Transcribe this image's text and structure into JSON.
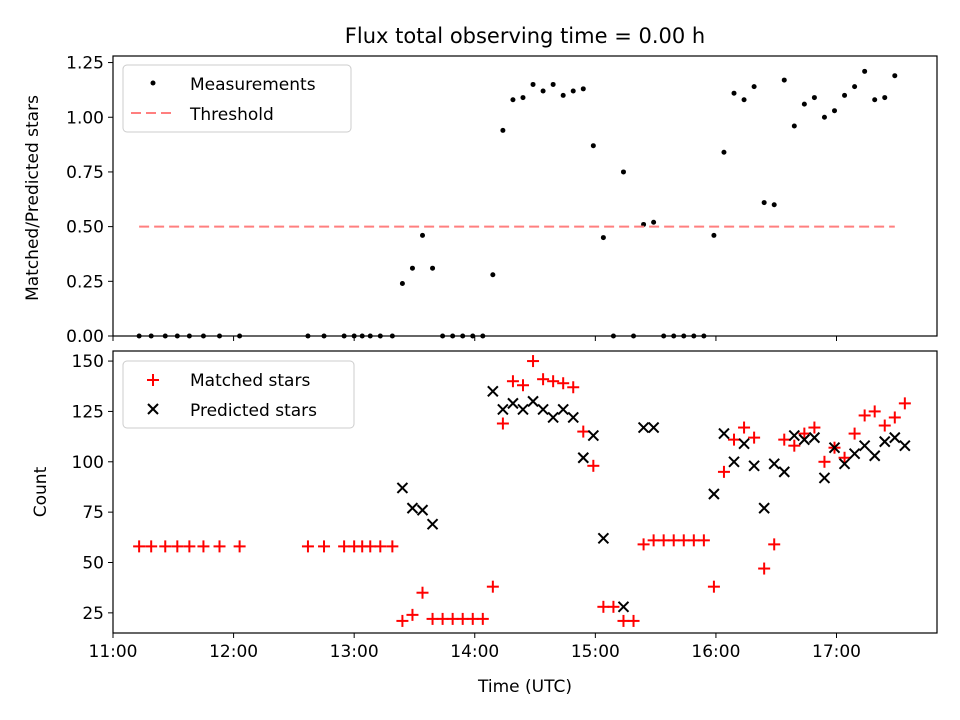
{
  "figure_title": "Flux total observing time = 0.00 h",
  "colors": {
    "measurement": "#000000",
    "threshold": "#ff7f7f",
    "matched": "#ff0000",
    "predicted": "#000000"
  },
  "chart_data": [
    {
      "type": "scatter",
      "title": "Flux total observing time = 0.00 h",
      "xlabel": "",
      "ylabel": "Matched/Predicted stars",
      "xlim": [
        "11:00",
        "17:50"
      ],
      "ylim": [
        0,
        1.28
      ],
      "yticks": [
        0,
        0.25,
        0.5,
        0.75,
        1.0,
        1.25
      ],
      "ytick_labels": [
        "0.00",
        "0.25",
        "0.50",
        "0.75",
        "1.00",
        "1.25"
      ],
      "xtick_labels_hidden": true,
      "grid": false,
      "legend": {
        "position": "top-left",
        "entries": [
          "Measurements",
          "Threshold"
        ]
      },
      "series": [
        {
          "name": "Measurements",
          "marker": "dot",
          "points": [
            [
              "11:13",
              0
            ],
            [
              "11:19",
              0
            ],
            [
              "11:26",
              0
            ],
            [
              "11:32",
              0
            ],
            [
              "11:38",
              0
            ],
            [
              "11:45",
              0
            ],
            [
              "11:53",
              0
            ],
            [
              "12:03",
              0
            ],
            [
              "12:37",
              0
            ],
            [
              "12:45",
              0
            ],
            [
              "12:55",
              0
            ],
            [
              "13:00",
              0
            ],
            [
              "13:04",
              0
            ],
            [
              "13:08",
              0
            ],
            [
              "13:13",
              0
            ],
            [
              "13:19",
              0
            ],
            [
              "13:24",
              0.24
            ],
            [
              "13:29",
              0.31
            ],
            [
              "13:34",
              0.46
            ],
            [
              "13:39",
              0.31
            ],
            [
              "13:44",
              0
            ],
            [
              "13:49",
              0
            ],
            [
              "13:54",
              0
            ],
            [
              "13:59",
              0
            ],
            [
              "14:04",
              0
            ],
            [
              "14:09",
              0.28
            ],
            [
              "14:14",
              0.94
            ],
            [
              "14:19",
              1.08
            ],
            [
              "14:24",
              1.09
            ],
            [
              "14:29",
              1.15
            ],
            [
              "14:34",
              1.12
            ],
            [
              "14:39",
              1.15
            ],
            [
              "14:44",
              1.1
            ],
            [
              "14:49",
              1.12
            ],
            [
              "14:54",
              1.13
            ],
            [
              "14:59",
              0.87
            ],
            [
              "15:04",
              0.45
            ],
            [
              "15:09",
              0
            ],
            [
              "15:14",
              0.75
            ],
            [
              "15:19",
              0
            ],
            [
              "15:24",
              0.51
            ],
            [
              "15:29",
              0.52
            ],
            [
              "15:34",
              0
            ],
            [
              "15:39",
              0
            ],
            [
              "15:44",
              0
            ],
            [
              "15:49",
              0
            ],
            [
              "15:54",
              0
            ],
            [
              "15:59",
              0.46
            ],
            [
              "16:04",
              0.84
            ],
            [
              "16:09",
              1.11
            ],
            [
              "16:14",
              1.08
            ],
            [
              "16:19",
              1.14
            ],
            [
              "16:24",
              0.61
            ],
            [
              "16:29",
              0.6
            ],
            [
              "16:34",
              1.17
            ],
            [
              "16:39",
              0.96
            ],
            [
              "16:44",
              1.06
            ],
            [
              "16:49",
              1.09
            ],
            [
              "16:54",
              1.0
            ],
            [
              "16:59",
              1.03
            ],
            [
              "17:04",
              1.1
            ],
            [
              "17:09",
              1.14
            ],
            [
              "17:14",
              1.21
            ],
            [
              "17:19",
              1.08
            ],
            [
              "17:24",
              1.09
            ],
            [
              "17:29",
              1.19
            ]
          ]
        },
        {
          "name": "Threshold",
          "style": "dashed",
          "points": [
            [
              "11:13",
              0.5
            ],
            [
              "17:29",
              0.5
            ]
          ]
        }
      ]
    },
    {
      "type": "scatter",
      "title": "",
      "xlabel": "Time (UTC)",
      "ylabel": "Count",
      "xlim": [
        "11:00",
        "17:50"
      ],
      "ylim": [
        15,
        155
      ],
      "yticks": [
        25,
        50,
        75,
        100,
        125,
        150
      ],
      "ytick_labels": [
        "25",
        "50",
        "75",
        "100",
        "125",
        "150"
      ],
      "xticks": [
        "11:00",
        "12:00",
        "13:00",
        "14:00",
        "15:00",
        "16:00",
        "17:00"
      ],
      "grid": false,
      "legend": {
        "position": "top-left",
        "entries": [
          "Matched stars",
          "Predicted stars"
        ]
      },
      "series": [
        {
          "name": "Matched stars",
          "marker": "plus",
          "points": [
            [
              "11:13",
              58
            ],
            [
              "11:19",
              58
            ],
            [
              "11:26",
              58
            ],
            [
              "11:32",
              58
            ],
            [
              "11:38",
              58
            ],
            [
              "11:45",
              58
            ],
            [
              "11:53",
              58
            ],
            [
              "12:03",
              58
            ],
            [
              "12:37",
              58
            ],
            [
              "12:45",
              58
            ],
            [
              "12:55",
              58
            ],
            [
              "13:00",
              58
            ],
            [
              "13:04",
              58
            ],
            [
              "13:08",
              58
            ],
            [
              "13:13",
              58
            ],
            [
              "13:19",
              58
            ],
            [
              "13:24",
              21
            ],
            [
              "13:29",
              24
            ],
            [
              "13:34",
              35
            ],
            [
              "13:39",
              22
            ],
            [
              "13:44",
              22
            ],
            [
              "13:49",
              22
            ],
            [
              "13:54",
              22
            ],
            [
              "13:59",
              22
            ],
            [
              "14:04",
              22
            ],
            [
              "14:09",
              38
            ],
            [
              "14:14",
              119
            ],
            [
              "14:19",
              140
            ],
            [
              "14:24",
              138
            ],
            [
              "14:29",
              150
            ],
            [
              "14:34",
              141
            ],
            [
              "14:39",
              140
            ],
            [
              "14:44",
              139
            ],
            [
              "14:49",
              137
            ],
            [
              "14:54",
              115
            ],
            [
              "14:59",
              98
            ],
            [
              "15:04",
              28
            ],
            [
              "15:09",
              28
            ],
            [
              "15:14",
              21
            ],
            [
              "15:19",
              21
            ],
            [
              "15:24",
              59
            ],
            [
              "15:29",
              61
            ],
            [
              "15:34",
              61
            ],
            [
              "15:39",
              61
            ],
            [
              "15:44",
              61
            ],
            [
              "15:49",
              61
            ],
            [
              "15:54",
              61
            ],
            [
              "15:59",
              38
            ],
            [
              "16:04",
              95
            ],
            [
              "16:09",
              111
            ],
            [
              "16:14",
              117
            ],
            [
              "16:19",
              112
            ],
            [
              "16:24",
              47
            ],
            [
              "16:29",
              59
            ],
            [
              "16:34",
              111
            ],
            [
              "16:39",
              108
            ],
            [
              "16:44",
              114
            ],
            [
              "16:49",
              117
            ],
            [
              "16:54",
              100
            ],
            [
              "16:59",
              107
            ],
            [
              "17:04",
              102
            ],
            [
              "17:09",
              114
            ],
            [
              "17:14",
              123
            ],
            [
              "17:19",
              125
            ],
            [
              "17:24",
              118
            ],
            [
              "17:29",
              122
            ],
            [
              "17:34",
              129
            ]
          ]
        },
        {
          "name": "Predicted stars",
          "marker": "x",
          "points": [
            [
              "13:24",
              87
            ],
            [
              "13:29",
              77
            ],
            [
              "13:34",
              76
            ],
            [
              "13:39",
              69
            ],
            [
              "14:09",
              135
            ],
            [
              "14:14",
              126
            ],
            [
              "14:19",
              129
            ],
            [
              "14:24",
              126
            ],
            [
              "14:29",
              130
            ],
            [
              "14:34",
              126
            ],
            [
              "14:39",
              122
            ],
            [
              "14:44",
              126
            ],
            [
              "14:49",
              122
            ],
            [
              "14:54",
              102
            ],
            [
              "14:59",
              113
            ],
            [
              "15:04",
              62
            ],
            [
              "15:14",
              28
            ],
            [
              "15:24",
              117
            ],
            [
              "15:29",
              117
            ],
            [
              "15:59",
              84
            ],
            [
              "16:04",
              114
            ],
            [
              "16:09",
              100
            ],
            [
              "16:14",
              109
            ],
            [
              "16:19",
              98
            ],
            [
              "16:24",
              77
            ],
            [
              "16:29",
              99
            ],
            [
              "16:34",
              95
            ],
            [
              "16:39",
              113
            ],
            [
              "16:44",
              111
            ],
            [
              "16:49",
              112
            ],
            [
              "16:54",
              92
            ],
            [
              "16:59",
              107
            ],
            [
              "17:04",
              99
            ],
            [
              "17:09",
              104
            ],
            [
              "17:14",
              108
            ],
            [
              "17:19",
              103
            ],
            [
              "17:24",
              110
            ],
            [
              "17:29",
              112
            ],
            [
              "17:34",
              108
            ]
          ]
        }
      ]
    }
  ]
}
